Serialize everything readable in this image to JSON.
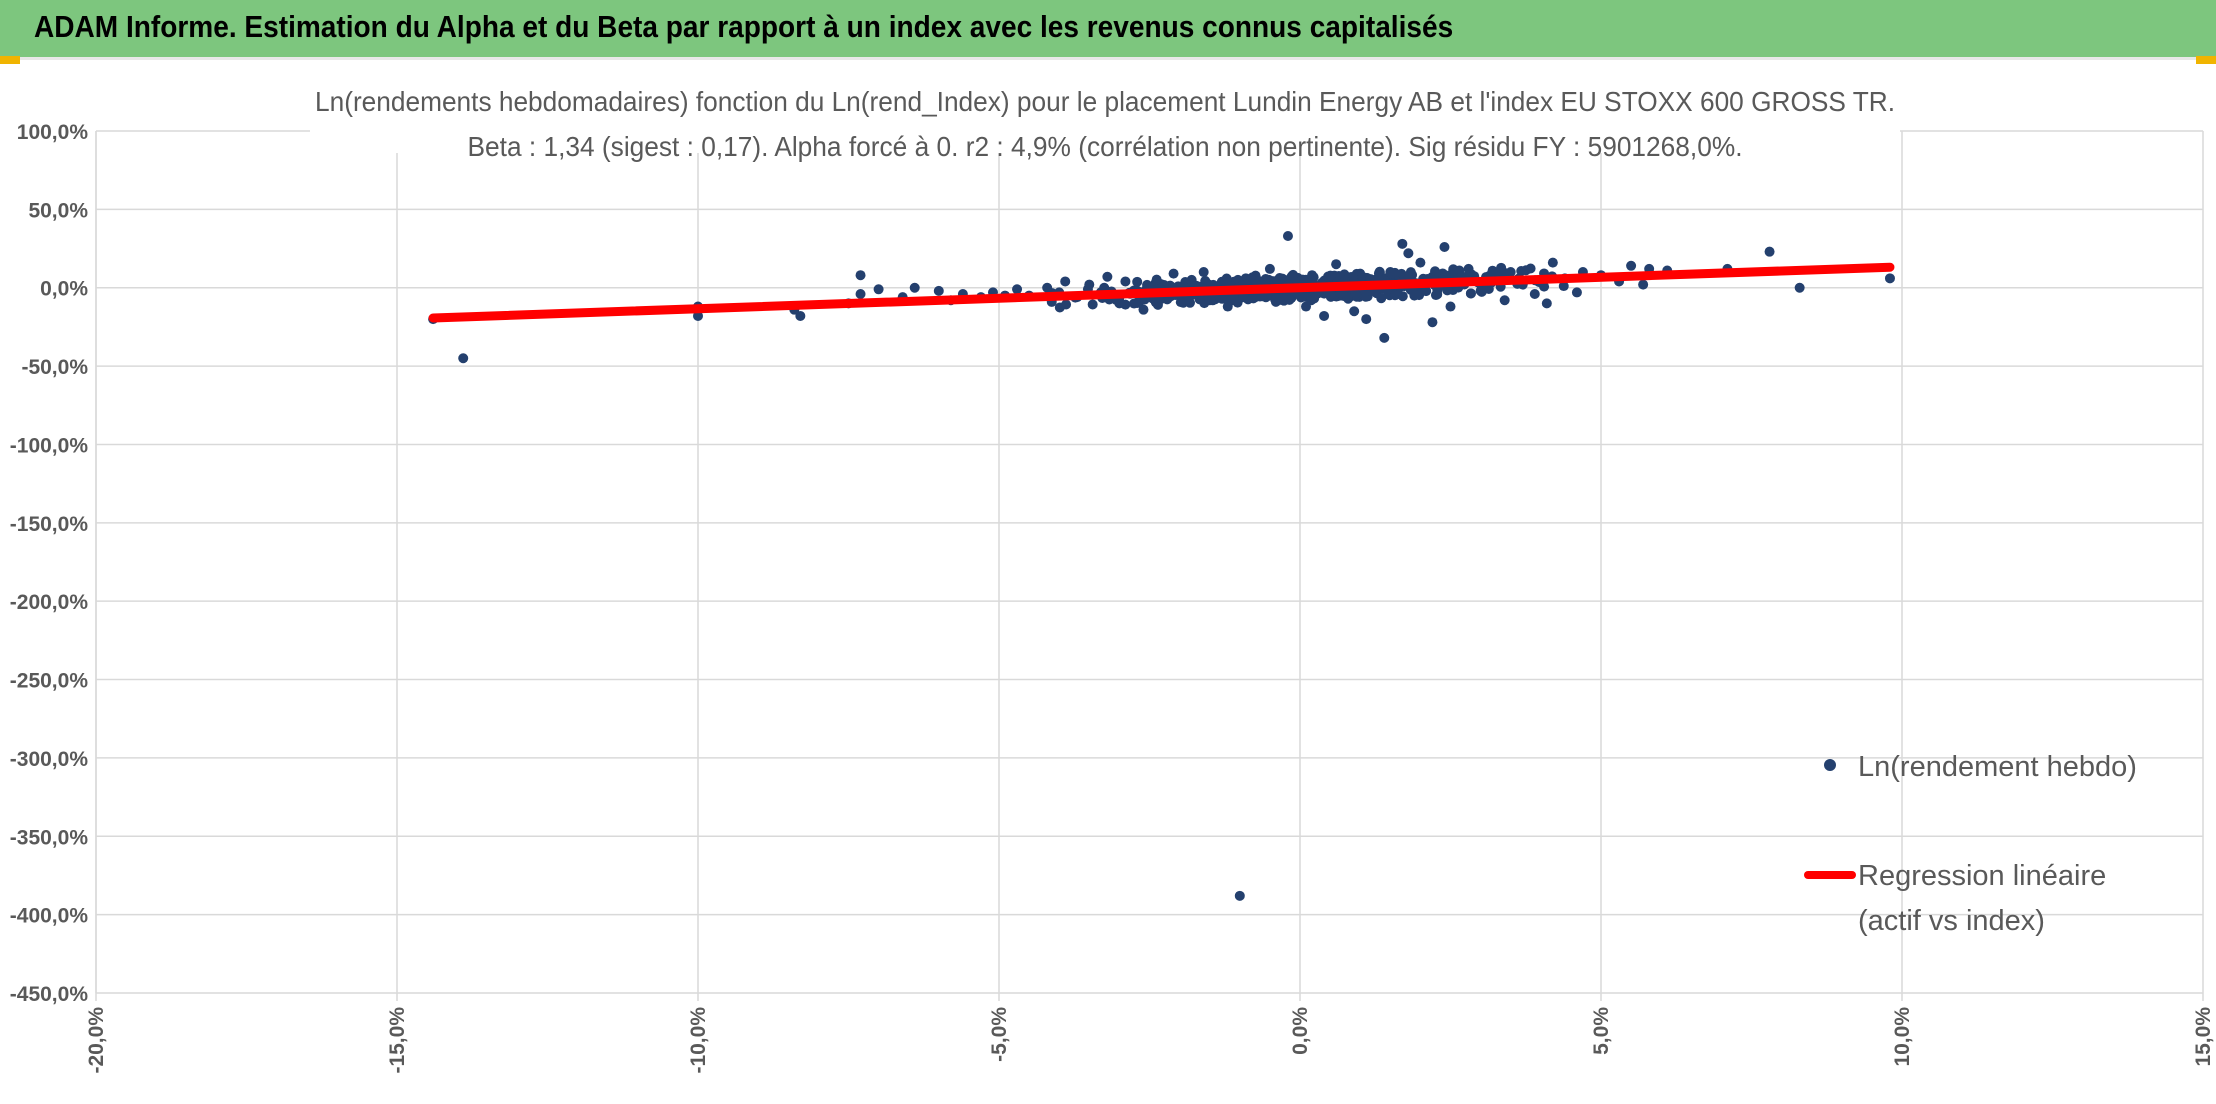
{
  "header": {
    "title": "ADAM Informe. Estimation du Alpha et du Beta par rapport à un index avec les revenus connus capitalisés"
  },
  "colors": {
    "banner": "#7dc67e",
    "points": "#24406e",
    "regression": "#ff0000",
    "grid": "#d9d9d9",
    "text": "#595959"
  },
  "chart_data": {
    "type": "scatter",
    "title_line1": "Ln(rendements hebdomadaires) fonction du Ln(rend_Index) pour le placement Lundin Energy AB et l'index EU STOXX 600 GROSS TR.",
    "title_line2": "Beta : 1,34 (sigest : 0,17). Alpha forcé à 0. r2 : 4,9% (corrélation non pertinente). Sig résidu FY : 5901268,0%.",
    "xlim": [
      -20,
      15
    ],
    "ylim": [
      -450,
      100
    ],
    "x_ticks": [
      "-20,0%",
      "-15,0%",
      "-10,0%",
      "-5,0%",
      "0,0%",
      "5,0%",
      "10,0%",
      "15,0%"
    ],
    "y_ticks": [
      "100,0%",
      "50,0%",
      "0,0%",
      "-50,0%",
      "-100,0%",
      "-150,0%",
      "-200,0%",
      "-250,0%",
      "-300,0%",
      "-350,0%",
      "-400,0%",
      "-450,0%"
    ],
    "grid": true,
    "legend_position": "right",
    "series": [
      {
        "name": "Ln(rendement hebdo)",
        "kind": "scatter",
        "points": [
          [
            -14.4,
            -20
          ],
          [
            -13.9,
            -45
          ],
          [
            -10.0,
            -12
          ],
          [
            -10.0,
            -18
          ],
          [
            -8.4,
            -14
          ],
          [
            -8.3,
            -18
          ],
          [
            -7.5,
            -10
          ],
          [
            -7.3,
            8
          ],
          [
            -7.3,
            -4
          ],
          [
            -7.0,
            -1
          ],
          [
            -6.6,
            -6
          ],
          [
            -6.4,
            0
          ],
          [
            -6.0,
            -2
          ],
          [
            -5.8,
            -8
          ],
          [
            -5.6,
            -4
          ],
          [
            -5.3,
            -6
          ],
          [
            -5.1,
            -3
          ],
          [
            -4.9,
            -5
          ],
          [
            -4.7,
            -1
          ],
          [
            -4.5,
            -5
          ],
          [
            -4.2,
            0
          ],
          [
            -4.0,
            -3
          ],
          [
            -3.9,
            4
          ],
          [
            -3.7,
            -6
          ],
          [
            -3.5,
            2
          ],
          [
            -3.3,
            -3
          ],
          [
            -3.2,
            7
          ],
          [
            -3.0,
            -10
          ],
          [
            -2.9,
            4
          ],
          [
            -2.7,
            -2
          ],
          [
            -2.6,
            -14
          ],
          [
            -2.4,
            3
          ],
          [
            -2.3,
            -7
          ],
          [
            -2.1,
            9
          ],
          [
            -1.9,
            -4
          ],
          [
            -1.8,
            5
          ],
          [
            -1.6,
            10
          ],
          [
            -1.5,
            -8
          ],
          [
            -1.3,
            2
          ],
          [
            -1.2,
            -12
          ],
          [
            -1.0,
            -388
          ],
          [
            -0.9,
            6
          ],
          [
            -0.7,
            -4
          ],
          [
            -0.5,
            12
          ],
          [
            -0.4,
            -9
          ],
          [
            -0.2,
            33
          ],
          [
            -0.1,
            5
          ],
          [
            0.1,
            -12
          ],
          [
            0.2,
            8
          ],
          [
            0.4,
            -18
          ],
          [
            0.5,
            3
          ],
          [
            0.6,
            15
          ],
          [
            0.8,
            -7
          ],
          [
            0.9,
            -15
          ],
          [
            1.0,
            9
          ],
          [
            1.1,
            -20
          ],
          [
            1.2,
            5
          ],
          [
            1.4,
            -32
          ],
          [
            1.5,
            10
          ],
          [
            1.6,
            -3
          ],
          [
            1.7,
            28
          ],
          [
            1.8,
            22
          ],
          [
            1.9,
            -5
          ],
          [
            2.0,
            16
          ],
          [
            2.2,
            -22
          ],
          [
            2.2,
            7
          ],
          [
            2.4,
            26
          ],
          [
            2.5,
            -12
          ],
          [
            2.6,
            4
          ],
          [
            2.8,
            12
          ],
          [
            3.0,
            -2
          ],
          [
            3.2,
            8
          ],
          [
            3.4,
            -8
          ],
          [
            3.5,
            10
          ],
          [
            3.7,
            2
          ],
          [
            3.9,
            -4
          ],
          [
            4.1,
            -10
          ],
          [
            4.2,
            16
          ],
          [
            4.4,
            6
          ],
          [
            4.6,
            -3
          ],
          [
            4.7,
            10
          ],
          [
            5.0,
            8
          ],
          [
            5.3,
            4
          ],
          [
            5.5,
            14
          ],
          [
            5.7,
            2
          ],
          [
            5.8,
            12
          ],
          [
            6.1,
            11
          ],
          [
            7.1,
            12
          ],
          [
            7.8,
            23
          ],
          [
            8.3,
            0
          ],
          [
            9.8,
            6
          ]
        ]
      },
      {
        "name": "Regression linéaire\n(actif vs index)",
        "legend_line1": "Regression linéaire",
        "legend_line2": "(actif vs index)",
        "kind": "line",
        "x": [
          -14.4,
          9.8
        ],
        "y": [
          -19.3,
          13.1
        ]
      }
    ]
  }
}
